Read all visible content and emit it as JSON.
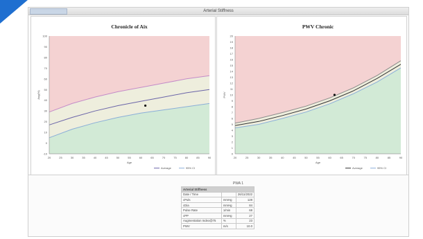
{
  "window": {
    "title": "Arterial Stiffness"
  },
  "chart_data": [
    {
      "type": "line",
      "title": "Chronicle of Aix",
      "xlabel": "Age",
      "ylabel": "Aug(%)",
      "x_ticks": [
        20,
        25,
        30,
        35,
        40,
        45,
        50,
        55,
        60,
        65,
        70,
        75,
        80,
        85,
        90
      ],
      "y_ticks": [
        -10,
        0,
        10,
        20,
        30,
        40,
        50,
        60,
        70,
        80,
        90,
        100
      ],
      "xlim": [
        20,
        90
      ],
      "ylim": [
        -10,
        100
      ],
      "series": [
        {
          "x": [
            20,
            30,
            40,
            50,
            60,
            70,
            80,
            90
          ],
          "y": [
            29,
            37,
            43,
            48,
            52,
            56,
            60,
            63
          ],
          "color": "#c48bc8"
        },
        {
          "x": [
            20,
            30,
            40,
            50,
            60,
            70,
            80,
            90
          ],
          "y": [
            17,
            24,
            30,
            35,
            39,
            43,
            47,
            50
          ],
          "color": "#6a64a8"
        },
        {
          "x": [
            20,
            30,
            40,
            50,
            60,
            70,
            80,
            90
          ],
          "y": [
            5,
            13,
            19,
            24,
            28,
            31,
            34,
            37
          ],
          "color": "#8aaed8"
        }
      ],
      "patient_point": {
        "x": 62,
        "y": 35
      },
      "legend": [
        "Average",
        "95% CI"
      ],
      "grid": false
    },
    {
      "type": "line",
      "title": "PWV Chronic",
      "xlabel": "Age",
      "ylabel": "PWV",
      "x_ticks": [
        20,
        25,
        30,
        35,
        40,
        45,
        50,
        55,
        60,
        65,
        70,
        75,
        80,
        85,
        90
      ],
      "y_ticks": [
        0,
        1,
        2,
        3,
        4,
        5,
        6,
        7,
        8,
        9,
        10,
        11,
        12,
        13,
        14,
        15,
        16,
        17,
        18,
        19,
        20
      ],
      "xlim": [
        20,
        90
      ],
      "ylim": [
        0,
        20
      ],
      "series": [
        {
          "x": [
            20,
            30,
            40,
            50,
            60,
            70,
            80,
            90
          ],
          "y": [
            5.2,
            6.0,
            7.0,
            8.1,
            9.5,
            11.2,
            13.3,
            15.8
          ],
          "color": "#8a8a8a"
        },
        {
          "x": [
            20,
            30,
            40,
            50,
            60,
            70,
            80,
            90
          ],
          "y": [
            4.8,
            5.5,
            6.5,
            7.6,
            9.0,
            10.7,
            12.8,
            15.2
          ],
          "color": "#333333"
        },
        {
          "x": [
            20,
            30,
            40,
            50,
            60,
            70,
            80,
            90
          ],
          "y": [
            4.4,
            5.0,
            6.0,
            7.1,
            8.5,
            10.2,
            12.2,
            14.6
          ],
          "color": "#8aaed8"
        }
      ],
      "patient_point": {
        "x": 62,
        "y": 10.0
      },
      "legend": [
        "Average",
        "95% CI"
      ],
      "grid": false
    }
  ],
  "zone_colors": {
    "red": "#f4d2d2",
    "green": "#d2ead6",
    "neutral": "#eeeedd"
  },
  "table": {
    "header_label": "PWA 1",
    "section_title": "Arterial Stiffness",
    "rows": [
      {
        "label": "Date / Time",
        "unit": "",
        "value": "26/11/2022"
      },
      {
        "label": "cPuls",
        "unit": "mmHg",
        "value": "128"
      },
      {
        "label": "cDia",
        "unit": "mmHg",
        "value": "84"
      },
      {
        "label": "Pulse Rate",
        "unit": "1/min",
        "value": "68"
      },
      {
        "label": "cPP",
        "unit": "mmHg",
        "value": "27"
      },
      {
        "label": "Augmentation Index@75",
        "unit": "%",
        "value": "23"
      },
      {
        "label": "PWV",
        "unit": "m/s",
        "value": "10.0"
      }
    ]
  }
}
